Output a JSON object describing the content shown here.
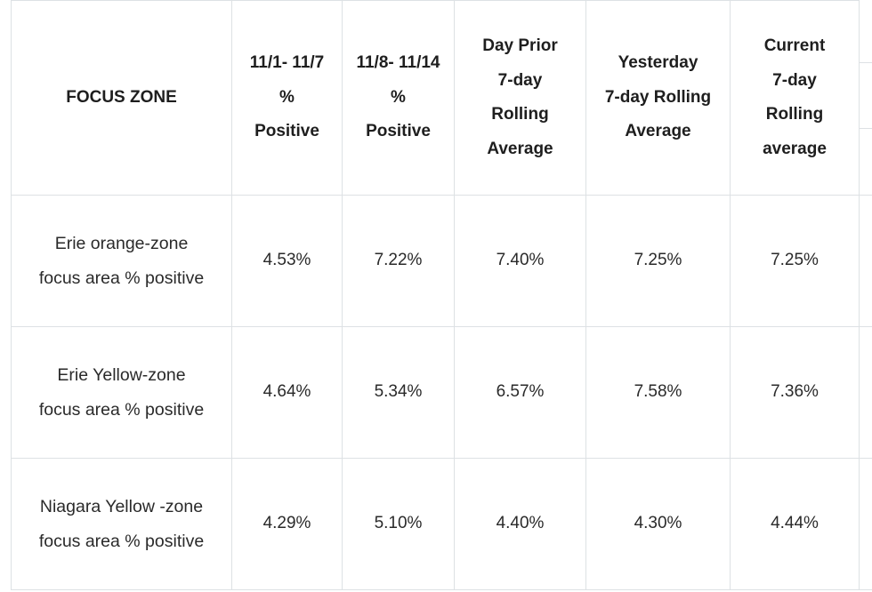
{
  "table": {
    "headers": [
      {
        "lines": [
          "FOCUS ZONE"
        ]
      },
      {
        "lines": [
          "11/1- 11/7",
          "%",
          "Positive"
        ]
      },
      {
        "lines": [
          "11/8- 11/14",
          "%",
          "Positive"
        ]
      },
      {
        "lines": [
          "Day Prior",
          "7-day",
          "Rolling",
          "Average"
        ]
      },
      {
        "lines": [
          "Yesterday",
          "7-day Rolling",
          "Average"
        ]
      },
      {
        "lines": [
          "Current",
          "7-day",
          "Rolling",
          "average"
        ]
      }
    ],
    "rows": [
      {
        "zone": [
          "Erie orange-zone",
          "focus area % positive"
        ],
        "values": [
          "4.53%",
          "7.22%",
          "7.40%",
          "7.25%",
          "7.25%"
        ]
      },
      {
        "zone": [
          "Erie Yellow-zone",
          "focus area % positive"
        ],
        "values": [
          "4.64%",
          "5.34%",
          "6.57%",
          "7.58%",
          "7.36%"
        ]
      },
      {
        "zone": [
          "Niagara Yellow -zone",
          "focus area % positive"
        ],
        "values": [
          "4.29%",
          "5.10%",
          "4.40%",
          "4.30%",
          "4.44%"
        ]
      }
    ]
  }
}
